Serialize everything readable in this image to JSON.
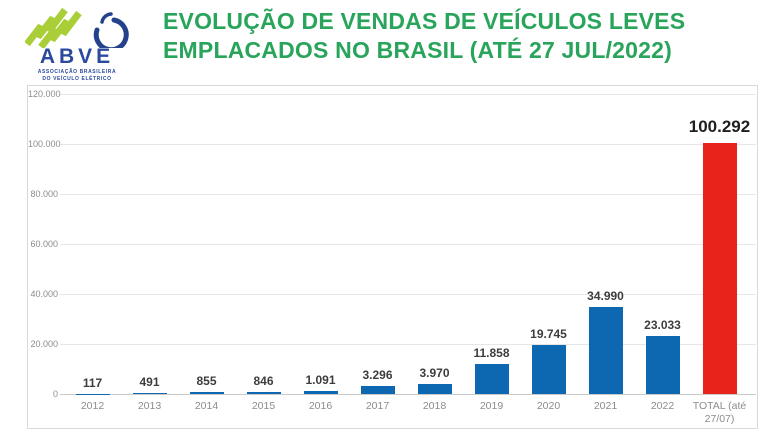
{
  "header": {
    "logo": {
      "name": "ABVE",
      "tagline_line1": "ASSOCIAÇÃO BRASILEIRA",
      "tagline_line2": "DO VEÍCULO ELÉTRICO"
    },
    "title_line1": "EVOLUÇÃO DE VENDAS DE VEÍCULOS LEVES",
    "title_line2": "EMPLACADOS NO BRASIL (ATÉ 27 JUL/2022)"
  },
  "chart_data": {
    "type": "bar",
    "title": "EVOLUÇÃO DE VENDAS DE VEÍCULOS LEVES EMPLACADOS NO BRASIL (ATÉ 27 JUL/2022)",
    "categories": [
      "2012",
      "2013",
      "2014",
      "2015",
      "2016",
      "2017",
      "2018",
      "2019",
      "2020",
      "2021",
      "2022",
      "TOTAL (até 27/07)"
    ],
    "values": [
      117,
      491,
      855,
      846,
      1091,
      3296,
      3970,
      11858,
      19745,
      34990,
      23033,
      100292
    ],
    "value_labels": [
      "117",
      "491",
      "855",
      "846",
      "1.091",
      "3.296",
      "3.970",
      "11.858",
      "19.745",
      "34.990",
      "23.033",
      "100.292"
    ],
    "y_ticks": [
      "120.000",
      "100.000",
      "80.000",
      "60.000",
      "40.000",
      "20.000",
      "0"
    ],
    "ylim": [
      0,
      120000
    ],
    "xlabel": "",
    "ylabel": "",
    "grid": true,
    "legend_position": "none"
  },
  "colors": {
    "title_green": "#29a45b",
    "bar_blue": "#0d68b1",
    "bar_red": "#e8231c",
    "logo_blue": "#2b4a9e",
    "logo_green": "#a9ce38",
    "grid_gray": "#e6e6e6",
    "axis_text": "#8c8c8c",
    "value_text": "#3d3d3d"
  }
}
